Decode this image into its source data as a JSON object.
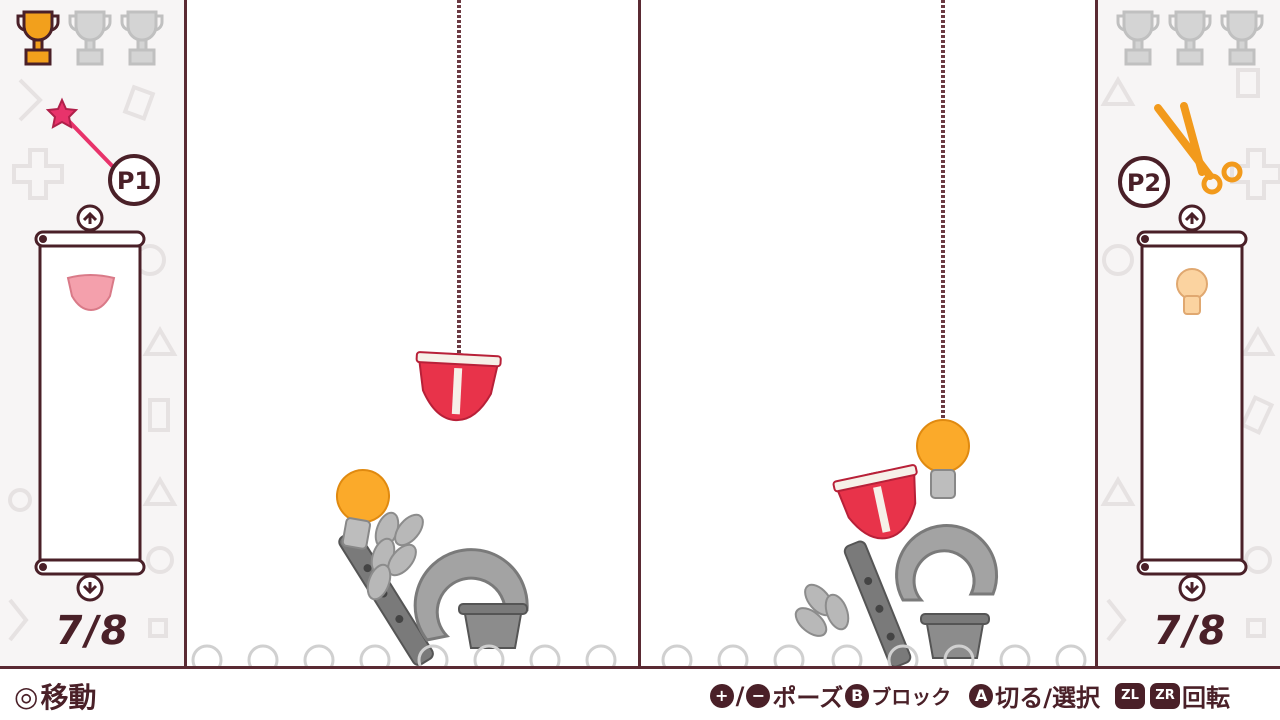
{
  "players": [
    {
      "id": "p1",
      "badge": "P1",
      "tool": "magic-wand-icon",
      "trophies_won": 1,
      "trophies_total": 3,
      "next_piece": "underwear-icon",
      "progress": "7/8"
    },
    {
      "id": "p2",
      "badge": "P2",
      "tool": "scissors-icon",
      "trophies_won": 0,
      "trophies_total": 3,
      "next_piece": "lightbulb-icon",
      "progress": "7/8"
    }
  ],
  "controls": {
    "move_symbol": "◎",
    "move_label": "移動",
    "pause_plus": "+",
    "pause_sep": "/",
    "pause_minus": "−",
    "pause_label": "ポーズ",
    "block_btn": "B",
    "block_label": "ブロック",
    "cut_btn": "A",
    "cut_label": "切る/選択",
    "zl_btn": "ZL",
    "zr_btn": "ZR",
    "rotate_label": "回転"
  },
  "colors": {
    "accent": "#4a2028",
    "trophy_gold": "#f2a01c",
    "trophy_silver": "#c9c9c9",
    "player_pink": "#e8336b",
    "scissors_orange": "#f29a1c",
    "underwear_red": "#e8334a",
    "bulb_yellow": "#fbaa2a",
    "object_gray": "#8c8c8c"
  }
}
